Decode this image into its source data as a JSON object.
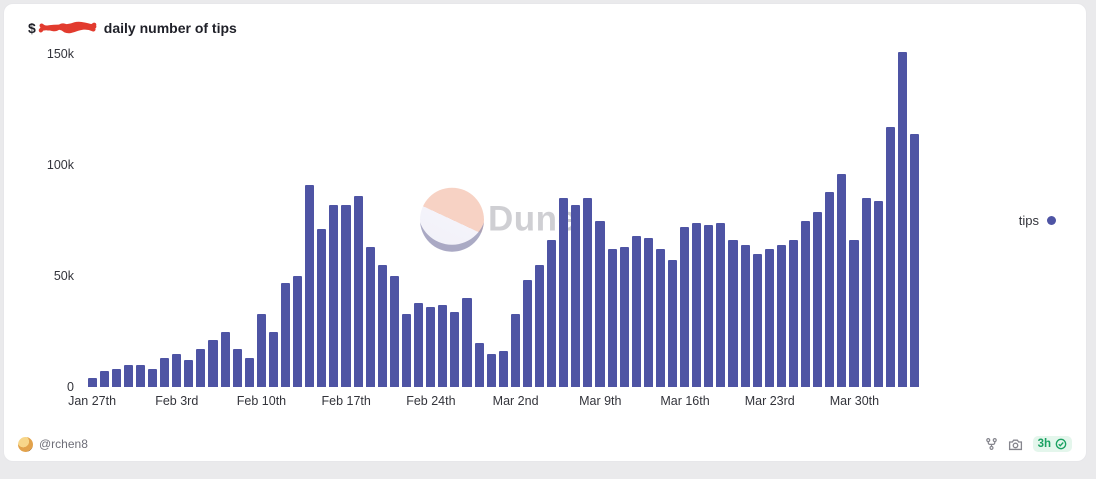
{
  "header": {
    "title_prefix": "$",
    "title_suffix": "daily number of tips"
  },
  "legend": {
    "label": "tips"
  },
  "watermark": {
    "text": "Dune"
  },
  "footer": {
    "author": "@rchen8",
    "cache_age": "3h",
    "icons": {
      "left": "avatar",
      "actions": [
        "fork-icon",
        "camera-icon"
      ],
      "badge_icon": "check-circle-icon"
    }
  },
  "colors": {
    "bar": "#4e54a4",
    "axis_text": "#33343b",
    "badge_bg": "#e4f6ec",
    "badge_text": "#1ca263",
    "redaction": "#e23b2e"
  },
  "chart_data": {
    "type": "bar",
    "title": "$[redacted] daily number of tips",
    "series_name": "tips",
    "xlabel": "",
    "ylabel": "",
    "ylim": [
      0,
      150000
    ],
    "grid": false,
    "legend_position": "right",
    "x": [
      "Jan 27",
      "Jan 28",
      "Jan 29",
      "Jan 30",
      "Jan 31",
      "Feb 1",
      "Feb 2",
      "Feb 3",
      "Feb 4",
      "Feb 5",
      "Feb 6",
      "Feb 7",
      "Feb 8",
      "Feb 9",
      "Feb 10",
      "Feb 11",
      "Feb 12",
      "Feb 13",
      "Feb 14",
      "Feb 15",
      "Feb 16",
      "Feb 17",
      "Feb 18",
      "Feb 19",
      "Feb 20",
      "Feb 21",
      "Feb 22",
      "Feb 23",
      "Feb 24",
      "Feb 25",
      "Feb 26",
      "Feb 27",
      "Feb 28",
      "Feb 29",
      "Mar 1",
      "Mar 2",
      "Mar 3",
      "Mar 4",
      "Mar 5",
      "Mar 6",
      "Mar 7",
      "Mar 8",
      "Mar 9",
      "Mar 10",
      "Mar 11",
      "Mar 12",
      "Mar 13",
      "Mar 14",
      "Mar 15",
      "Mar 16",
      "Mar 17",
      "Mar 18",
      "Mar 19",
      "Mar 20",
      "Mar 21",
      "Mar 22",
      "Mar 23",
      "Mar 24",
      "Mar 25",
      "Mar 26",
      "Mar 27",
      "Mar 28",
      "Mar 29",
      "Mar 30",
      "Mar 31",
      "Apr 1",
      "Apr 2",
      "Apr 3",
      "Apr 4"
    ],
    "values": [
      4000,
      7000,
      8000,
      10000,
      10000,
      8000,
      13000,
      15000,
      12000,
      17000,
      21000,
      25000,
      17000,
      13000,
      33000,
      25000,
      47000,
      50000,
      91000,
      71000,
      82000,
      82000,
      86000,
      63000,
      55000,
      50000,
      33000,
      38000,
      36000,
      37000,
      34000,
      40000,
      20000,
      15000,
      16000,
      33000,
      48000,
      55000,
      66000,
      85000,
      82000,
      85000,
      75000,
      62000,
      63000,
      68000,
      67000,
      62000,
      57000,
      72000,
      74000,
      73000,
      74000,
      66000,
      64000,
      60000,
      62000,
      64000,
      66000,
      75000,
      79000,
      88000,
      96000,
      66000,
      85000,
      84000,
      117000,
      151000,
      114000
    ],
    "x_ticks": [
      {
        "label": "Jan 27th",
        "day": 0
      },
      {
        "label": "Feb 3rd",
        "day": 7
      },
      {
        "label": "Feb 10th",
        "day": 14
      },
      {
        "label": "Feb 17th",
        "day": 21
      },
      {
        "label": "Feb 24th",
        "day": 28
      },
      {
        "label": "Mar 2nd",
        "day": 35
      },
      {
        "label": "Mar 9th",
        "day": 42
      },
      {
        "label": "Mar 16th",
        "day": 49
      },
      {
        "label": "Mar 23rd",
        "day": 56
      },
      {
        "label": "Mar 30th",
        "day": 63
      }
    ],
    "y_ticks": [
      {
        "label": "0",
        "pos": 0
      },
      {
        "label": "50k",
        "pos": 33.33
      },
      {
        "label": "100k",
        "pos": 66.67
      },
      {
        "label": "150k",
        "pos": 100
      }
    ]
  }
}
